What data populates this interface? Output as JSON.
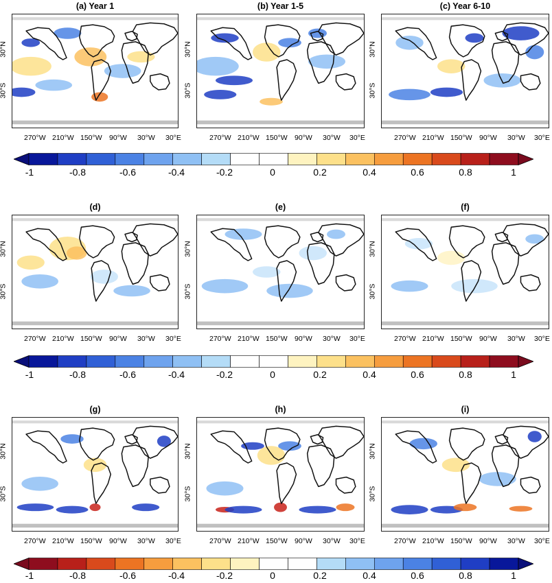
{
  "panels": [
    {
      "id": "a",
      "title": "(a) Year 1"
    },
    {
      "id": "b",
      "title": "(b) Year 1-5"
    },
    {
      "id": "c",
      "title": "(c) Year 6-10"
    },
    {
      "id": "d",
      "title": "(d)"
    },
    {
      "id": "e",
      "title": "(e)"
    },
    {
      "id": "f",
      "title": "(f)"
    },
    {
      "id": "g",
      "title": "(g)"
    },
    {
      "id": "h",
      "title": "(h)"
    },
    {
      "id": "i",
      "title": "(i)"
    }
  ],
  "lat_labels": [
    "30°N",
    "30°S"
  ],
  "lon_labels": [
    "270°W",
    "210°W",
    "150°W",
    "90°W",
    "30°W",
    "30°E"
  ],
  "colorbars": [
    {
      "id": "cb1",
      "ticks": [
        "-1",
        "-0.8",
        "-0.6",
        "-0.4",
        "-0.2",
        "0",
        "0.2",
        "0.4",
        "0.6",
        "0.8",
        "1"
      ],
      "colors": [
        "#08179a",
        "#1f3ec4",
        "#3060d6",
        "#4b82e4",
        "#6ea3ee",
        "#8fc0f4",
        "#b4dcf7",
        "#ffffff",
        "#ffffff",
        "#fef3c0",
        "#fde08a",
        "#fbc160",
        "#f69d3e",
        "#ec7423",
        "#d94a1c",
        "#b8201a",
        "#8e0d1e"
      ],
      "end_left": "#0a0f7a",
      "end_right": "#7a0b1e"
    },
    {
      "id": "cb2",
      "ticks": [
        "-1",
        "-0.8",
        "-0.6",
        "-0.4",
        "-0.2",
        "0",
        "0.2",
        "0.4",
        "0.6",
        "0.8",
        "1"
      ],
      "colors": [
        "#08179a",
        "#1f3ec4",
        "#3060d6",
        "#4b82e4",
        "#6ea3ee",
        "#8fc0f4",
        "#b4dcf7",
        "#ffffff",
        "#ffffff",
        "#fef3c0",
        "#fde08a",
        "#fbc160",
        "#f69d3e",
        "#ec7423",
        "#d94a1c",
        "#b8201a",
        "#8e0d1e"
      ],
      "end_left": "#0a0f7a",
      "end_right": "#7a0b1e"
    },
    {
      "id": "cb3",
      "ticks": [
        "-1",
        "-0.8",
        "-0.6",
        "-0.4",
        "-0.2",
        "0",
        "0.2",
        "0.4",
        "0.6",
        "0.8",
        "1"
      ],
      "colors": [
        "#8e0d1e",
        "#b8201a",
        "#d94a1c",
        "#ec7423",
        "#f69d3e",
        "#fbc160",
        "#fde08a",
        "#fef3c0",
        "#ffffff",
        "#ffffff",
        "#b4dcf7",
        "#8fc0f4",
        "#6ea3ee",
        "#4b82e4",
        "#3060d6",
        "#1f3ec4",
        "#08179a"
      ],
      "end_left": "#7a0b1e",
      "end_right": "#0a0f7a"
    }
  ]
}
